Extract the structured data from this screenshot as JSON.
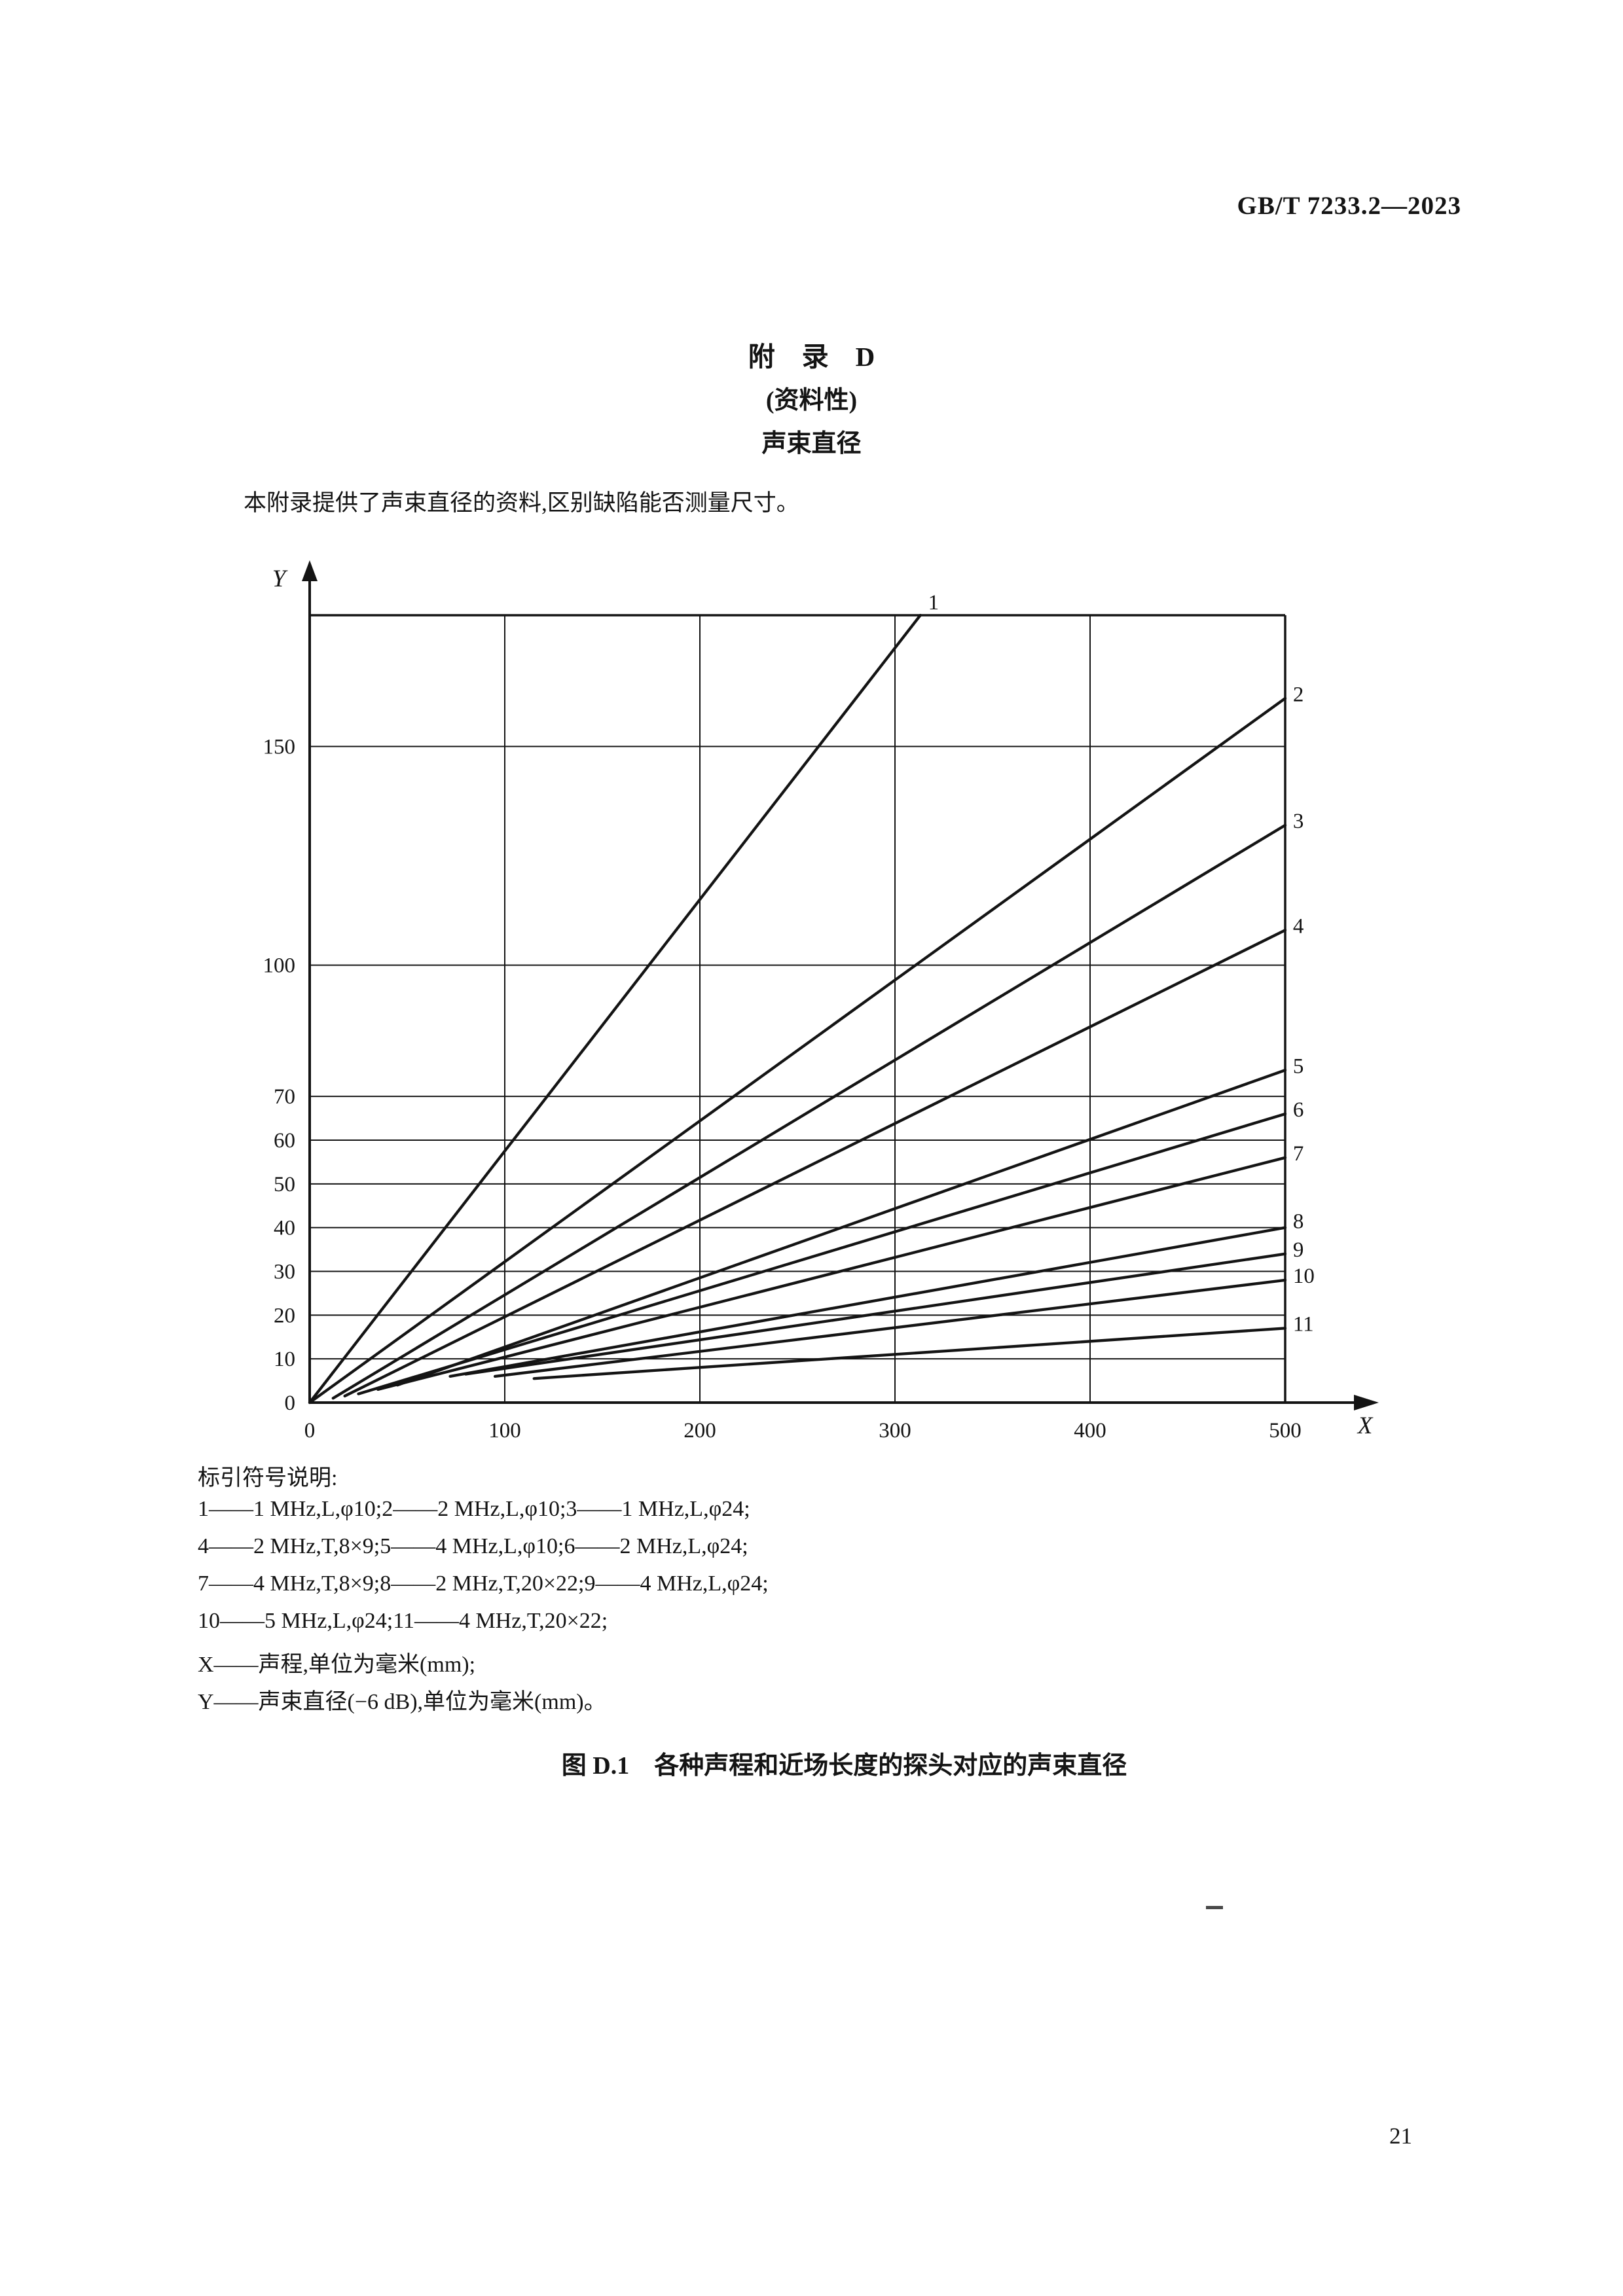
{
  "header": {
    "standard_no": "GB/T 7233.2—2023"
  },
  "appendix": {
    "title": "附　录　D",
    "subtitle": "(资料性)",
    "heading": "声束直径",
    "intro": "本附录提供了声束直径的资料,区别缺陷能否测量尺寸。"
  },
  "chart_data": {
    "type": "line",
    "title": "图 D.1 各种声程和近场长度的探头对应的声束直径",
    "xlabel": "X",
    "ylabel": "Y",
    "x_meaning": "声程,单位为毫米(mm)",
    "y_meaning": "声束直径(−6 dB),单位为毫米(mm)",
    "xlim": [
      0,
      500
    ],
    "ylim": [
      0,
      180
    ],
    "x_ticks": [
      0,
      100,
      200,
      300,
      400,
      500
    ],
    "y_ticks": [
      0,
      10,
      20,
      30,
      40,
      50,
      60,
      70,
      100,
      150
    ],
    "grid": true,
    "legend_position": "right-edge-numbers",
    "series": [
      {
        "id": "1",
        "name": "1 MHz,L,φ10",
        "points": [
          [
            0,
            0
          ],
          [
            313,
            180
          ]
        ],
        "label_at": [
          317,
          183
        ]
      },
      {
        "id": "2",
        "name": "2 MHz,L,φ10",
        "points": [
          [
            0,
            0
          ],
          [
            500,
            161
          ]
        ],
        "label_at": [
          504,
          162
        ]
      },
      {
        "id": "3",
        "name": "1 MHz,L,φ24",
        "points": [
          [
            12,
            1
          ],
          [
            500,
            132
          ]
        ],
        "label_at": [
          504,
          133
        ]
      },
      {
        "id": "4",
        "name": "2 MHz,T,8×9",
        "points": [
          [
            18,
            1.5
          ],
          [
            500,
            108
          ]
        ],
        "label_at": [
          504,
          109
        ]
      },
      {
        "id": "5",
        "name": "4 MHz,L,φ10",
        "points": [
          [
            45,
            4
          ],
          [
            500,
            76
          ]
        ],
        "label_at": [
          504,
          77
        ]
      },
      {
        "id": "6",
        "name": "2 MHz,L,φ24",
        "points": [
          [
            25,
            2
          ],
          [
            500,
            66
          ]
        ],
        "label_at": [
          504,
          67
        ]
      },
      {
        "id": "7",
        "name": "4 MHz,T,8×9",
        "points": [
          [
            35,
            3
          ],
          [
            500,
            56
          ]
        ],
        "label_at": [
          504,
          57
        ]
      },
      {
        "id": "8",
        "name": "2 MHz,T,20×22",
        "points": [
          [
            72,
            6
          ],
          [
            500,
            40
          ]
        ],
        "label_at": [
          504,
          41.5
        ]
      },
      {
        "id": "9",
        "name": "4 MHz,L,φ24",
        "points": [
          [
            80,
            6.5
          ],
          [
            500,
            34
          ]
        ],
        "label_at": [
          504,
          35
        ]
      },
      {
        "id": "10",
        "name": "5 MHz,L,φ24",
        "points": [
          [
            95,
            6
          ],
          [
            500,
            28
          ]
        ],
        "label_at": [
          504,
          29
        ]
      },
      {
        "id": "11",
        "name": "4 MHz,T,20×22",
        "points": [
          [
            115,
            5.5
          ],
          [
            500,
            17
          ]
        ],
        "label_at": [
          504,
          18
        ]
      }
    ],
    "ink_color": "#141414"
  },
  "legend": {
    "title": "标引符号说明:",
    "lines": [
      "1——1 MHz,L,φ10;2——2 MHz,L,φ10;3——1 MHz,L,φ24;",
      "4——2 MHz,T,8×9;5——4 MHz,L,φ10;6——2 MHz,L,φ24;",
      "7——4 MHz,T,8×9;8——2 MHz,T,20×22;9——4 MHz,L,φ24;",
      "10——5 MHz,L,φ24;11——4 MHz,T,20×22;",
      "X——声程,单位为毫米(mm);",
      "Y——声束直径(−6 dB),单位为毫米(mm)。"
    ]
  },
  "caption": "图 D.1　各种声程和近场长度的探头对应的声束直径",
  "page_number": "21"
}
